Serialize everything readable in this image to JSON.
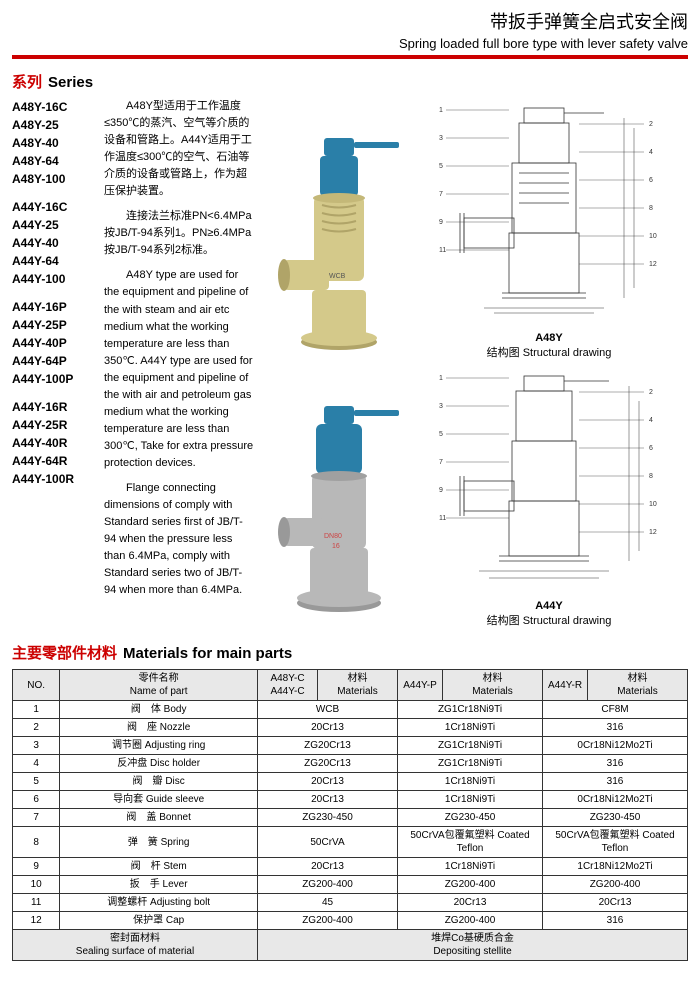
{
  "header": {
    "title_cn": "带扳手弹簧全启式安全阀",
    "title_en": "Spring loaded full bore type with lever safety valve"
  },
  "series": {
    "label_cn": "系列",
    "label_en": "Series",
    "groups": [
      [
        "A48Y-16C",
        "A48Y-25",
        "A48Y-40",
        "A48Y-64",
        "A48Y-100"
      ],
      [
        "A44Y-16C",
        "A44Y-25",
        "A44Y-40",
        "A44Y-64",
        "A44Y-100"
      ],
      [
        "A44Y-16P",
        "A44Y-25P",
        "A44Y-40P",
        "A44Y-64P",
        "A44Y-100P"
      ],
      [
        "A44Y-16R",
        "A44Y-25R",
        "A44Y-40R",
        "A44Y-64R",
        "A44Y-100R"
      ]
    ]
  },
  "desc": {
    "p1": "A48Y型适用于工作温度≤350℃的蒸汽、空气等介质的设备和管路上。A44Y适用于工作温度≤300℃的空气、石油等介质的设备或管路上，作为超压保护装置。",
    "p2": "连接法兰标准PN<6.4MPa按JB/T-94系列1。PN≥6.4MPa按JB/T-94系列2标准。",
    "p3": "A48Y type are used for the equipment and pipeline of the with steam and air etc medium what the working temperature are less than 350℃. A44Y type are used for the equipment and pipeline of the with air and petroleum gas medium what the working temperature are less than 300℃, Take for extra pressure protection devices.",
    "p4": "Flange connecting dimensions of comply with Standard series first of JB/T-94 when the pressure less than 6.4MPa, comply with Standard series two of JB/T-94 when more than 6.4MPa."
  },
  "figures": {
    "a48y": {
      "model": "A48Y",
      "caption": "结构图 Structural drawing"
    },
    "a44y": {
      "model": "A44Y",
      "caption": "结构图 Structural drawing"
    }
  },
  "visual": {
    "photo1": {
      "body_color": "#d4c98a",
      "top_color": "#2a7fa8",
      "base_color": "#888"
    },
    "photo2": {
      "body_color": "#b8b8b8",
      "top_color": "#2a7fa8",
      "base_color": "#999"
    },
    "drawing_stroke": "#333",
    "numbers": [
      "1",
      "2",
      "3",
      "4",
      "5",
      "6",
      "7",
      "8",
      "9",
      "10",
      "11",
      "12"
    ]
  },
  "materials": {
    "label_cn": "主要零部件材料",
    "label_en": "Materials for main parts",
    "columns": [
      "NO.",
      "零件名称\nName of part",
      "A48Y-C\nA44Y-C",
      "材料\nMaterials",
      "A44Y-P",
      "材料\nMaterials",
      "A44Y-R",
      "材料\nMaterials"
    ],
    "header": {
      "no": "NO.",
      "name": "零件名称\nName of part",
      "col1_a": "A48Y-C\nA44Y-C",
      "col1_b": "材料\nMaterials",
      "col2_a": "A44Y-P",
      "col2_b": "材料\nMaterials",
      "col3_a": "A44Y-R",
      "col3_b": "材料\nMaterials"
    },
    "rows": [
      {
        "no": "1",
        "name": "阀　体 Body",
        "c1": "WCB",
        "c2": "ZG1Cr18Ni9Ti",
        "c3": "CF8M"
      },
      {
        "no": "2",
        "name": "阀　座 Nozzle",
        "c1": "20Cr13",
        "c2": "1Cr18Ni9Ti",
        "c3": "316"
      },
      {
        "no": "3",
        "name": "调节圈 Adjusting ring",
        "c1": "ZG20Cr13",
        "c2": "ZG1Cr18Ni9Ti",
        "c3": "0Cr18Ni12Mo2Ti"
      },
      {
        "no": "4",
        "name": "反冲盘 Disc holder",
        "c1": "ZG20Cr13",
        "c2": "ZG1Cr18Ni9Ti",
        "c3": "316"
      },
      {
        "no": "5",
        "name": "阀　瓣 Disc",
        "c1": "20Cr13",
        "c2": "1Cr18Ni9Ti",
        "c3": "316"
      },
      {
        "no": "6",
        "name": "导向套 Guide sleeve",
        "c1": "20Cr13",
        "c2": "1Cr18Ni9Ti",
        "c3": "0Cr18Ni12Mo2Ti"
      },
      {
        "no": "7",
        "name": "阀　盖 Bonnet",
        "c1": "ZG230-450",
        "c2": "ZG230-450",
        "c3": "ZG230-450"
      },
      {
        "no": "8",
        "name": "弹　簧 Spring",
        "c1": "50CrVA",
        "c2": "50CrVA包覆氟塑料 Coated Teflon",
        "c3": "50CrVA包覆氟塑料 Coated Teflon"
      },
      {
        "no": "9",
        "name": "阀　杆 Stem",
        "c1": "20Cr13",
        "c2": "1Cr18Ni9Ti",
        "c3": "1Cr18Ni12Mo2Ti"
      },
      {
        "no": "10",
        "name": "扳　手 Lever",
        "c1": "ZG200-400",
        "c2": "ZG200-400",
        "c3": "ZG200-400"
      },
      {
        "no": "11",
        "name": "调整螺杆 Adjusting bolt",
        "c1": "45",
        "c2": "20Cr13",
        "c3": "20Cr13"
      },
      {
        "no": "12",
        "name": "保护罩 Cap",
        "c1": "ZG200-400",
        "c2": "ZG200-400",
        "c3": "316"
      }
    ],
    "footer": {
      "name": "密封面材料\nSealing surface of material",
      "c1": "堆焊Co基硬质合金\nDepositing stellite"
    }
  },
  "colors": {
    "accent": "#c00",
    "divider": "#c00",
    "table_border": "#333",
    "header_bg": "#e8e8e8"
  }
}
